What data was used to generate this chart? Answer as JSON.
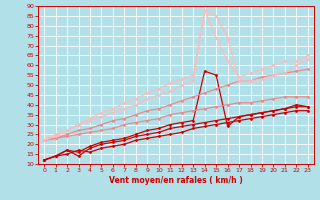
{
  "bg_color": "#b2e0e8",
  "grid_color": "#ffffff",
  "xlabel": "Vent moyen/en rafales ( km/h )",
  "xlabel_color": "#cc0000",
  "tick_color": "#cc0000",
  "spine_color": "#cc0000",
  "xlim": [
    -0.5,
    23.5
  ],
  "ylim": [
    10,
    90
  ],
  "ytick_labels": [
    "10",
    "15",
    "20",
    "25",
    "30",
    "35",
    "40",
    "45",
    "50",
    "55",
    "60",
    "65",
    "70",
    "75",
    "80",
    "85",
    "90"
  ],
  "ytick_vals": [
    10,
    15,
    20,
    25,
    30,
    35,
    40,
    45,
    50,
    55,
    60,
    65,
    70,
    75,
    80,
    85,
    90
  ],
  "xtick_vals": [
    0,
    1,
    2,
    3,
    4,
    5,
    6,
    7,
    8,
    9,
    10,
    11,
    12,
    13,
    14,
    15,
    16,
    17,
    18,
    19,
    20,
    21,
    22,
    23
  ],
  "series": [
    {
      "x": [
        0,
        1,
        2,
        3,
        4,
        5,
        6,
        7,
        8,
        9,
        10,
        11,
        12,
        13,
        14,
        15,
        16,
        17,
        18,
        19,
        20,
        21,
        22,
        23
      ],
      "y": [
        12,
        14,
        15,
        17,
        16,
        18,
        19,
        20,
        22,
        23,
        24,
        25,
        26,
        28,
        29,
        30,
        31,
        32,
        33,
        34,
        35,
        36,
        37,
        37
      ],
      "color": "#cc0000",
      "lw": 0.9,
      "marker": "D",
      "ms": 1.5
    },
    {
      "x": [
        0,
        1,
        2,
        3,
        4,
        5,
        6,
        7,
        8,
        9,
        10,
        11,
        12,
        13,
        14,
        15,
        16,
        17,
        18,
        19,
        20,
        21,
        22,
        23
      ],
      "y": [
        12,
        14,
        17,
        14,
        18,
        20,
        21,
        22,
        24,
        25,
        26,
        28,
        29,
        30,
        31,
        32,
        33,
        34,
        35,
        36,
        37,
        38,
        39,
        39
      ],
      "color": "#cc0000",
      "lw": 0.9,
      "marker": "D",
      "ms": 1.5
    },
    {
      "x": [
        0,
        1,
        2,
        3,
        4,
        5,
        6,
        7,
        8,
        9,
        10,
        11,
        12,
        13,
        14,
        15,
        16,
        17,
        18,
        19,
        20,
        21,
        22,
        23
      ],
      "y": [
        12,
        14,
        17,
        16,
        19,
        21,
        22,
        23,
        25,
        27,
        28,
        30,
        31,
        32,
        57,
        55,
        29,
        34,
        35,
        36,
        37,
        38,
        40,
        39
      ],
      "color": "#cc0000",
      "lw": 0.9,
      "marker": "D",
      "ms": 1.5
    },
    {
      "x": [
        0,
        1,
        2,
        3,
        4,
        5,
        6,
        7,
        8,
        9,
        10,
        11,
        12,
        13,
        14,
        15,
        16,
        17,
        18,
        19,
        20,
        21,
        22,
        23
      ],
      "y": [
        22,
        23,
        24,
        25,
        26,
        27,
        28,
        30,
        31,
        32,
        33,
        35,
        36,
        37,
        38,
        39,
        40,
        41,
        41,
        42,
        43,
        44,
        44,
        44
      ],
      "color": "#ee8888",
      "lw": 0.9,
      "marker": "D",
      "ms": 1.5
    },
    {
      "x": [
        0,
        1,
        2,
        3,
        4,
        5,
        6,
        7,
        8,
        9,
        10,
        11,
        12,
        13,
        14,
        15,
        16,
        17,
        18,
        19,
        20,
        21,
        22,
        23
      ],
      "y": [
        22,
        23,
        25,
        27,
        28,
        30,
        32,
        33,
        35,
        37,
        38,
        40,
        42,
        44,
        46,
        48,
        50,
        52,
        52,
        54,
        55,
        56,
        57,
        58
      ],
      "color": "#ee8888",
      "lw": 0.9,
      "marker": "D",
      "ms": 1.5
    },
    {
      "x": [
        0,
        1,
        2,
        3,
        4,
        5,
        6,
        7,
        8,
        9,
        10,
        11,
        12,
        13,
        14,
        15,
        16,
        17,
        18,
        19,
        20,
        21,
        22,
        23
      ],
      "y": [
        22,
        25,
        27,
        30,
        32,
        34,
        36,
        38,
        40,
        43,
        45,
        47,
        50,
        52,
        88,
        85,
        74,
        52,
        52,
        53,
        55,
        56,
        60,
        63
      ],
      "color": "#ffbbbb",
      "lw": 0.9,
      "marker": "D",
      "ms": 1.5
    },
    {
      "x": [
        0,
        1,
        2,
        3,
        4,
        5,
        6,
        7,
        8,
        9,
        10,
        11,
        12,
        13,
        14,
        15,
        16,
        17,
        18,
        19,
        20,
        21,
        22,
        23
      ],
      "y": [
        22,
        24,
        27,
        30,
        33,
        36,
        38,
        41,
        43,
        46,
        48,
        51,
        53,
        55,
        88,
        74,
        62,
        54,
        56,
        58,
        60,
        62,
        62,
        65
      ],
      "color": "#ffbbbb",
      "lw": 0.9,
      "marker": "D",
      "ms": 1.5
    }
  ]
}
